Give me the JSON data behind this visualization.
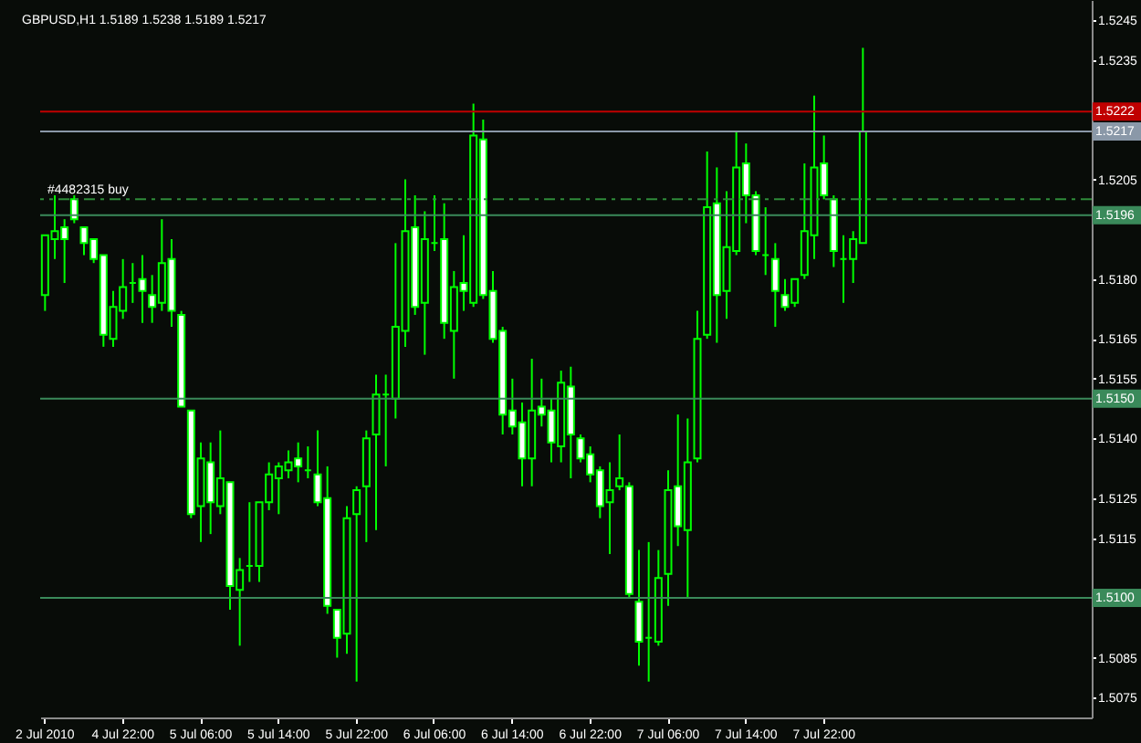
{
  "chart_data": {
    "type": "candlestick",
    "title": "GBPUSD,H1 1.5189 1.5238 1.5189 1.5217",
    "categories": [
      "2 Jul 2010",
      null,
      null,
      null,
      null,
      null,
      null,
      null,
      "4 Jul 22:00",
      null,
      null,
      null,
      null,
      null,
      null,
      null,
      "5 Jul 06:00",
      null,
      null,
      null,
      null,
      null,
      null,
      null,
      "5 Jul 14:00",
      null,
      null,
      null,
      null,
      null,
      null,
      null,
      "5 Jul 22:00",
      null,
      null,
      null,
      null,
      null,
      null,
      null,
      "6 Jul 06:00",
      null,
      null,
      null,
      null,
      null,
      null,
      null,
      "6 Jul 14:00",
      null,
      null,
      null,
      null,
      null,
      null,
      null,
      "6 Jul 22:00",
      null,
      null,
      null,
      null,
      null,
      null,
      null,
      "7 Jul 06:00",
      null,
      null,
      null,
      null,
      null,
      null,
      null,
      "7 Jul 14:00",
      null,
      null,
      null,
      null,
      null,
      null,
      null,
      "7 Jul 22:00",
      null,
      null,
      null,
      null,
      null,
      null,
      null,
      null,
      null,
      null,
      null,
      null,
      null,
      null,
      null,
      null,
      null,
      null,
      null,
      null,
      null,
      null,
      null,
      null,
      null,
      null,
      null
    ],
    "ohlc": [
      [
        1.5176,
        1.5191,
        1.5172,
        1.5191
      ],
      [
        1.519,
        1.5201,
        1.5185,
        1.5192
      ],
      [
        1.5193,
        1.5195,
        1.5179,
        1.519
      ],
      [
        1.52,
        1.5201,
        1.5194,
        1.5195
      ],
      [
        1.5193,
        1.5193,
        1.5186,
        1.5189
      ],
      [
        1.519,
        1.519,
        1.5184,
        1.5185
      ],
      [
        1.5186,
        1.5186,
        1.5163,
        1.5166
      ],
      [
        1.5165,
        1.5177,
        1.5163,
        1.5173
      ],
      [
        1.5172,
        1.5185,
        1.517,
        1.5178
      ],
      [
        1.5179,
        1.5184,
        1.5174,
        1.5179
      ],
      [
        1.518,
        1.5186,
        1.5169,
        1.5177
      ],
      [
        1.5176,
        1.5181,
        1.5169,
        1.5173
      ],
      [
        1.5174,
        1.5195,
        1.5172,
        1.5184
      ],
      [
        1.5185,
        1.519,
        1.5168,
        1.5172
      ],
      [
        1.5171,
        1.5172,
        1.5148,
        1.5148
      ],
      [
        1.5147,
        1.5147,
        1.512,
        1.5121
      ],
      [
        1.5123,
        1.5139,
        1.5114,
        1.5135
      ],
      [
        1.5134,
        1.5139,
        1.5116,
        1.5124
      ],
      [
        1.5123,
        1.5142,
        1.5121,
        1.513
      ],
      [
        1.5129,
        1.5129,
        1.5097,
        1.5103
      ],
      [
        1.5102,
        1.511,
        1.5088,
        1.5107
      ],
      [
        1.5108,
        1.5124,
        1.5104,
        1.5108
      ],
      [
        1.5108,
        1.5124,
        1.5104,
        1.5124
      ],
      [
        1.5124,
        1.5134,
        1.5122,
        1.5131
      ],
      [
        1.513,
        1.5134,
        1.5121,
        1.5133
      ],
      [
        1.5132,
        1.5137,
        1.513,
        1.5134
      ],
      [
        1.5135,
        1.5139,
        1.5129,
        1.5133
      ],
      [
        1.5132,
        1.5138,
        1.513,
        1.5132
      ],
      [
        1.5131,
        1.5142,
        1.5123,
        1.5124
      ],
      [
        1.5125,
        1.5133,
        1.5096,
        1.5098
      ],
      [
        1.5097,
        1.5097,
        1.5085,
        1.509
      ],
      [
        1.5091,
        1.5123,
        1.5086,
        1.512
      ],
      [
        1.5121,
        1.5128,
        1.5079,
        1.5127
      ],
      [
        1.5128,
        1.5142,
        1.5114,
        1.514
      ],
      [
        1.5141,
        1.5156,
        1.5117,
        1.5151
      ],
      [
        1.5151,
        1.5156,
        1.5133,
        1.5151
      ],
      [
        1.515,
        1.5189,
        1.5145,
        1.5168
      ],
      [
        1.5167,
        1.5205,
        1.5163,
        1.5192
      ],
      [
        1.5193,
        1.5201,
        1.5171,
        1.5173
      ],
      [
        1.5174,
        1.5197,
        1.5161,
        1.519
      ],
      [
        1.5189,
        1.5201,
        1.5187,
        1.5189
      ],
      [
        1.519,
        1.5199,
        1.5165,
        1.5169
      ],
      [
        1.5167,
        1.5182,
        1.5155,
        1.5178
      ],
      [
        1.5179,
        1.5191,
        1.5172,
        1.5177
      ],
      [
        1.5174,
        1.5224,
        1.5173,
        1.5216
      ],
      [
        1.5215,
        1.522,
        1.5175,
        1.5176
      ],
      [
        1.5177,
        1.5182,
        1.5164,
        1.5165
      ],
      [
        1.5167,
        1.5168,
        1.5141,
        1.5146
      ],
      [
        1.5147,
        1.5155,
        1.5141,
        1.5143
      ],
      [
        1.5144,
        1.5149,
        1.5128,
        1.5135
      ],
      [
        1.5135,
        1.516,
        1.5128,
        1.5147
      ],
      [
        1.5148,
        1.5155,
        1.5143,
        1.5146
      ],
      [
        1.5147,
        1.515,
        1.5134,
        1.5139
      ],
      [
        1.5138,
        1.5157,
        1.5134,
        1.5154
      ],
      [
        1.5153,
        1.5158,
        1.513,
        1.5141
      ],
      [
        1.514,
        1.5141,
        1.5134,
        1.5135
      ],
      [
        1.5136,
        1.5138,
        1.5129,
        1.5131
      ],
      [
        1.5132,
        1.5133,
        1.512,
        1.5123
      ],
      [
        1.5124,
        1.5134,
        1.5111,
        1.5127
      ],
      [
        1.5128,
        1.5141,
        1.5127,
        1.513
      ],
      [
        1.5128,
        1.5129,
        1.51,
        1.5101
      ],
      [
        1.5099,
        1.5112,
        1.5083,
        1.5089
      ],
      [
        1.509,
        1.5114,
        1.5079,
        1.509
      ],
      [
        1.5089,
        1.5112,
        1.5088,
        1.5105
      ],
      [
        1.5106,
        1.5132,
        1.5098,
        1.5127
      ],
      [
        1.5128,
        1.5146,
        1.5113,
        1.5118
      ],
      [
        1.5117,
        1.5145,
        1.51,
        1.5134
      ],
      [
        1.5135,
        1.5172,
        1.5134,
        1.5165
      ],
      [
        1.5166,
        1.5212,
        1.5165,
        1.5198
      ],
      [
        1.5199,
        1.5208,
        1.5164,
        1.5176
      ],
      [
        1.5177,
        1.5202,
        1.517,
        1.5188
      ],
      [
        1.5187,
        1.5217,
        1.5186,
        1.5208
      ],
      [
        1.5209,
        1.5214,
        1.5194,
        1.5201
      ],
      [
        1.5201,
        1.5202,
        1.5186,
        1.5187
      ],
      [
        1.5186,
        1.5198,
        1.5181,
        1.5186
      ],
      [
        1.5185,
        1.5189,
        1.5168,
        1.5177
      ],
      [
        1.5176,
        1.518,
        1.5172,
        1.5173
      ],
      [
        1.5174,
        1.518,
        1.5173,
        1.518
      ],
      [
        1.5181,
        1.5209,
        1.518,
        1.5192
      ],
      [
        1.5191,
        1.5226,
        1.5185,
        1.5208
      ],
      [
        1.5209,
        1.5216,
        1.52,
        1.5201
      ],
      [
        1.52,
        1.5201,
        1.5183,
        1.5187
      ],
      [
        1.5185,
        1.5191,
        1.5174,
        1.5185
      ],
      [
        1.5185,
        1.5192,
        1.5179,
        1.519
      ],
      [
        1.5189,
        1.5238,
        1.5189,
        1.5217
      ],
      null,
      null,
      null,
      null,
      null,
      null,
      null,
      null,
      null,
      null,
      null,
      null,
      null,
      null,
      null,
      null,
      null,
      null,
      null,
      null,
      null,
      null,
      null
    ],
    "color": "#00ff00",
    "colors": [
      "#080c08",
      "#080c08",
      "#ffffff",
      "#ffffff",
      "#ffffff",
      "#ffffff",
      "#ffffff",
      "#080c08",
      "#080c08",
      "#00ff00",
      "#ffffff",
      "#ffffff",
      "#080c08",
      "#ffffff",
      "#ffffff",
      "#ffffff",
      "#080c08",
      "#ffffff",
      "#080c08",
      "#ffffff",
      "#080c08",
      "#00ff00",
      "#080c08",
      "#080c08",
      "#080c08",
      "#080c08",
      "#ffffff",
      "#00ff00",
      "#ffffff",
      "#ffffff",
      "#ffffff",
      "#080c08",
      "#080c08",
      "#080c08",
      "#080c08",
      "#00ff00",
      "#080c08",
      "#080c08",
      "#ffffff",
      "#080c08",
      "#00ff00",
      "#ffffff",
      "#080c08",
      "#ffffff",
      "#080c08",
      "#ffffff",
      "#ffffff",
      "#ffffff",
      "#ffffff",
      "#ffffff",
      "#080c08",
      "#ffffff",
      "#ffffff",
      "#080c08",
      "#ffffff",
      "#ffffff",
      "#ffffff",
      "#ffffff",
      "#080c08",
      "#080c08",
      "#ffffff",
      "#ffffff",
      "#00ff00",
      "#080c08",
      "#080c08",
      "#ffffff",
      "#080c08",
      "#080c08",
      "#080c08",
      "#ffffff",
      "#080c08",
      "#080c08",
      "#ffffff",
      "#ffffff",
      "#00ff00",
      "#ffffff",
      "#ffffff",
      "#080c08",
      "#080c08",
      "#080c08",
      "#ffffff",
      "#ffffff",
      "#00ff00",
      "#080c08",
      "#080c08",
      null,
      null,
      null,
      null,
      null,
      null,
      null,
      null,
      null,
      null,
      null,
      null,
      null,
      null,
      null,
      null,
      null,
      null,
      null,
      null,
      null,
      null,
      null
    ],
    "ylim": [
      1.507,
      1.525
    ],
    "yticks": [
      1.5245,
      1.5235,
      1.5205,
      {
        "value": 1.518,
        "label": "1.5180"
      },
      1.5165,
      1.5155,
      {
        "value": 1.514,
        "label": "1.5140"
      },
      1.5125,
      1.5115,
      1.5085,
      1.5075
    ],
    "ref_lines": [
      {
        "axis": "y",
        "value": 1.5222,
        "label": "1.5222",
        "color": "#c00000",
        "line_style": "solid"
      },
      {
        "axis": "y",
        "value": 1.5217,
        "label": "1.5217",
        "color": "#8a98a8",
        "line_style": "solid"
      },
      {
        "axis": "y",
        "value": 1.52,
        "label": "#4482315 buy",
        "color": "#2e8b3a",
        "line_style": "dashed"
      },
      {
        "axis": "y",
        "value": 1.5196,
        "label": "1.5196",
        "color": "#3a8a5a",
        "line_style": "solid"
      },
      {
        "axis": "y",
        "value": 1.515,
        "label": "1.5150",
        "color": "#3a8a5a",
        "line_style": "solid"
      },
      {
        "axis": "y",
        "value": 1.51,
        "label": "1.5100",
        "color": "#3a8a5a",
        "line_style": "solid"
      }
    ]
  }
}
